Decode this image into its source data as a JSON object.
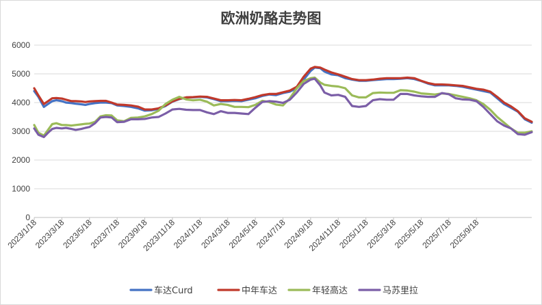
{
  "chart_data": {
    "type": "line",
    "title": "欧洲奶酪走势图",
    "xlabel": "",
    "ylabel": "",
    "ylim": [
      0,
      6000
    ],
    "yticks": [
      "0",
      "1000",
      "2000",
      "3000",
      "4000",
      "5000",
      "6000"
    ],
    "xticks": [
      "2023/1/18",
      "2023/3/18",
      "2023/5/18",
      "2023/7/18",
      "2023/9/18",
      "2023/11/18",
      "2024/1/18",
      "2024/3/18",
      "2024/5/18",
      "2024/7/18",
      "2024/9/18",
      "2024/11/18",
      "2025/1/18",
      "2025/3/18",
      "2025/5/18",
      "2025/7/18",
      "2025/9/18"
    ],
    "grid": "horizontal",
    "legend_position": "bottom",
    "x_unit": "months since 2023/1/18",
    "series": [
      {
        "name": "车达Curd",
        "color": "#4472C4",
        "points": [
          [
            0,
            4400
          ],
          [
            0.3,
            4200
          ],
          [
            0.7,
            3850
          ],
          [
            1.0,
            3950
          ],
          [
            1.3,
            4050
          ],
          [
            1.6,
            4080
          ],
          [
            2.0,
            4050
          ],
          [
            2.3,
            4000
          ],
          [
            2.7,
            3980
          ],
          [
            3.0,
            3960
          ],
          [
            3.4,
            3940
          ],
          [
            3.7,
            3920
          ],
          [
            4.0,
            3950
          ],
          [
            4.4,
            3980
          ],
          [
            4.8,
            4000
          ],
          [
            5.2,
            4000
          ],
          [
            5.6,
            3980
          ],
          [
            6.0,
            3900
          ],
          [
            6.5,
            3880
          ],
          [
            7.0,
            3850
          ],
          [
            7.5,
            3800
          ],
          [
            8.0,
            3720
          ],
          [
            8.5,
            3730
          ],
          [
            9.0,
            3780
          ],
          [
            9.5,
            3880
          ],
          [
            10.0,
            4030
          ],
          [
            10.5,
            4120
          ],
          [
            11.0,
            4180
          ],
          [
            11.5,
            4180
          ],
          [
            12.0,
            4200
          ],
          [
            12.5,
            4180
          ],
          [
            13.0,
            4120
          ],
          [
            13.5,
            4050
          ],
          [
            14.0,
            4050
          ],
          [
            14.5,
            4060
          ],
          [
            15.0,
            4050
          ],
          [
            15.5,
            4100
          ],
          [
            16.0,
            4150
          ],
          [
            16.5,
            4230
          ],
          [
            17.0,
            4280
          ],
          [
            17.5,
            4260
          ],
          [
            18.0,
            4330
          ],
          [
            18.5,
            4380
          ],
          [
            19.0,
            4500
          ],
          [
            19.5,
            4800
          ],
          [
            20.0,
            5100
          ],
          [
            20.3,
            5220
          ],
          [
            20.7,
            5200
          ],
          [
            21.0,
            5080
          ],
          [
            21.5,
            4980
          ],
          [
            22.0,
            4950
          ],
          [
            22.5,
            4850
          ],
          [
            23.0,
            4800
          ],
          [
            23.5,
            4760
          ],
          [
            24.0,
            4760
          ],
          [
            24.5,
            4780
          ],
          [
            25.0,
            4800
          ],
          [
            25.5,
            4820
          ],
          [
            26.0,
            4820
          ],
          [
            26.5,
            4830
          ],
          [
            27.0,
            4850
          ],
          [
            27.5,
            4820
          ],
          [
            28.0,
            4750
          ],
          [
            28.5,
            4660
          ],
          [
            29.0,
            4600
          ],
          [
            29.5,
            4600
          ],
          [
            30.0,
            4600
          ],
          [
            30.5,
            4580
          ],
          [
            31.0,
            4550
          ],
          [
            31.5,
            4500
          ],
          [
            32.0,
            4450
          ],
          [
            32.5,
            4400
          ],
          [
            33.0,
            4350
          ],
          [
            33.5,
            4150
          ],
          [
            34.0,
            3950
          ],
          [
            34.5,
            3820
          ],
          [
            35.0,
            3680
          ],
          [
            35.5,
            3420
          ],
          [
            36.0,
            3300
          ]
        ]
      },
      {
        "name": "中年车达",
        "color": "#C0392B",
        "points": [
          [
            0,
            4500
          ],
          [
            0.3,
            4250
          ],
          [
            0.7,
            3950
          ],
          [
            1.0,
            4050
          ],
          [
            1.3,
            4150
          ],
          [
            1.6,
            4160
          ],
          [
            2.0,
            4140
          ],
          [
            2.3,
            4100
          ],
          [
            2.7,
            4050
          ],
          [
            3.0,
            4050
          ],
          [
            3.4,
            4040
          ],
          [
            3.7,
            4020
          ],
          [
            4.0,
            4040
          ],
          [
            4.4,
            4050
          ],
          [
            4.8,
            4060
          ],
          [
            5.2,
            4060
          ],
          [
            5.6,
            4000
          ],
          [
            6.0,
            3930
          ],
          [
            6.5,
            3920
          ],
          [
            7.0,
            3900
          ],
          [
            7.5,
            3860
          ],
          [
            8.0,
            3760
          ],
          [
            8.5,
            3760
          ],
          [
            9.0,
            3800
          ],
          [
            9.5,
            3900
          ],
          [
            10.0,
            4040
          ],
          [
            10.5,
            4130
          ],
          [
            11.0,
            4180
          ],
          [
            11.5,
            4190
          ],
          [
            12.0,
            4210
          ],
          [
            12.5,
            4200
          ],
          [
            13.0,
            4140
          ],
          [
            13.5,
            4080
          ],
          [
            14.0,
            4080
          ],
          [
            14.5,
            4090
          ],
          [
            15.0,
            4080
          ],
          [
            15.5,
            4130
          ],
          [
            16.0,
            4190
          ],
          [
            16.5,
            4260
          ],
          [
            17.0,
            4300
          ],
          [
            17.5,
            4300
          ],
          [
            18.0,
            4360
          ],
          [
            18.5,
            4420
          ],
          [
            19.0,
            4550
          ],
          [
            19.5,
            4900
          ],
          [
            20.0,
            5180
          ],
          [
            20.3,
            5240
          ],
          [
            20.7,
            5220
          ],
          [
            21.0,
            5150
          ],
          [
            21.5,
            5050
          ],
          [
            22.0,
            4980
          ],
          [
            22.5,
            4900
          ],
          [
            23.0,
            4820
          ],
          [
            23.5,
            4780
          ],
          [
            24.0,
            4780
          ],
          [
            24.5,
            4800
          ],
          [
            25.0,
            4830
          ],
          [
            25.5,
            4850
          ],
          [
            26.0,
            4850
          ],
          [
            26.5,
            4850
          ],
          [
            27.0,
            4870
          ],
          [
            27.5,
            4850
          ],
          [
            28.0,
            4760
          ],
          [
            28.5,
            4680
          ],
          [
            29.0,
            4630
          ],
          [
            29.5,
            4630
          ],
          [
            30.0,
            4620
          ],
          [
            30.5,
            4600
          ],
          [
            31.0,
            4580
          ],
          [
            31.5,
            4530
          ],
          [
            32.0,
            4480
          ],
          [
            32.5,
            4450
          ],
          [
            33.0,
            4380
          ],
          [
            33.5,
            4200
          ],
          [
            34.0,
            4000
          ],
          [
            34.5,
            3870
          ],
          [
            35.0,
            3700
          ],
          [
            35.5,
            3450
          ],
          [
            36.0,
            3330
          ]
        ]
      },
      {
        "name": "年轻高达",
        "color": "#9BBB59",
        "points": [
          [
            0,
            3220
          ],
          [
            0.3,
            2950
          ],
          [
            0.7,
            2850
          ],
          [
            1.0,
            3050
          ],
          [
            1.3,
            3250
          ],
          [
            1.6,
            3280
          ],
          [
            2.0,
            3220
          ],
          [
            2.3,
            3220
          ],
          [
            2.7,
            3200
          ],
          [
            3.0,
            3220
          ],
          [
            3.4,
            3240
          ],
          [
            3.7,
            3260
          ],
          [
            4.0,
            3270
          ],
          [
            4.4,
            3330
          ],
          [
            4.8,
            3520
          ],
          [
            5.2,
            3560
          ],
          [
            5.6,
            3550
          ],
          [
            6.0,
            3380
          ],
          [
            6.5,
            3350
          ],
          [
            7.0,
            3470
          ],
          [
            7.5,
            3480
          ],
          [
            8.0,
            3520
          ],
          [
            8.5,
            3600
          ],
          [
            9.0,
            3720
          ],
          [
            9.5,
            3950
          ],
          [
            10.0,
            4100
          ],
          [
            10.5,
            4200
          ],
          [
            11.0,
            4110
          ],
          [
            11.5,
            4080
          ],
          [
            12.0,
            4100
          ],
          [
            12.5,
            4030
          ],
          [
            13.0,
            3900
          ],
          [
            13.5,
            3950
          ],
          [
            14.0,
            3920
          ],
          [
            14.5,
            3850
          ],
          [
            15.0,
            3850
          ],
          [
            15.5,
            3840
          ],
          [
            16.0,
            3920
          ],
          [
            16.5,
            4060
          ],
          [
            17.0,
            4020
          ],
          [
            17.5,
            3930
          ],
          [
            18.0,
            3900
          ],
          [
            18.5,
            4150
          ],
          [
            19.0,
            4500
          ],
          [
            19.5,
            4750
          ],
          [
            20.0,
            4850
          ],
          [
            20.3,
            4870
          ],
          [
            20.7,
            4700
          ],
          [
            21.0,
            4620
          ],
          [
            21.5,
            4580
          ],
          [
            22.0,
            4560
          ],
          [
            22.5,
            4500
          ],
          [
            23.0,
            4250
          ],
          [
            23.5,
            4180
          ],
          [
            24.0,
            4180
          ],
          [
            24.5,
            4330
          ],
          [
            25.0,
            4350
          ],
          [
            25.5,
            4340
          ],
          [
            26.0,
            4340
          ],
          [
            26.5,
            4430
          ],
          [
            27.0,
            4420
          ],
          [
            27.5,
            4380
          ],
          [
            28.0,
            4320
          ],
          [
            28.5,
            4300
          ],
          [
            29.0,
            4280
          ],
          [
            29.5,
            4320
          ],
          [
            30.0,
            4300
          ],
          [
            30.5,
            4250
          ],
          [
            31.0,
            4200
          ],
          [
            31.5,
            4150
          ],
          [
            32.0,
            4080
          ],
          [
            32.5,
            3950
          ],
          [
            33.0,
            3750
          ],
          [
            33.5,
            3500
          ],
          [
            34.0,
            3300
          ],
          [
            34.5,
            3100
          ],
          [
            35.0,
            2950
          ],
          [
            35.5,
            2950
          ],
          [
            36.0,
            3000
          ]
        ]
      },
      {
        "name": "马苏里拉",
        "color": "#7B5EA7",
        "points": [
          [
            0,
            3100
          ],
          [
            0.3,
            2880
          ],
          [
            0.7,
            2800
          ],
          [
            1.0,
            2950
          ],
          [
            1.3,
            3080
          ],
          [
            1.6,
            3120
          ],
          [
            2.0,
            3100
          ],
          [
            2.3,
            3120
          ],
          [
            2.7,
            3080
          ],
          [
            3.0,
            3050
          ],
          [
            3.4,
            3080
          ],
          [
            3.7,
            3120
          ],
          [
            4.0,
            3150
          ],
          [
            4.4,
            3280
          ],
          [
            4.8,
            3480
          ],
          [
            5.2,
            3500
          ],
          [
            5.6,
            3480
          ],
          [
            6.0,
            3320
          ],
          [
            6.5,
            3330
          ],
          [
            7.0,
            3420
          ],
          [
            7.5,
            3420
          ],
          [
            8.0,
            3430
          ],
          [
            8.5,
            3480
          ],
          [
            9.0,
            3500
          ],
          [
            9.5,
            3620
          ],
          [
            10.0,
            3760
          ],
          [
            10.5,
            3780
          ],
          [
            11.0,
            3750
          ],
          [
            11.5,
            3740
          ],
          [
            12.0,
            3740
          ],
          [
            12.5,
            3660
          ],
          [
            13.0,
            3600
          ],
          [
            13.5,
            3700
          ],
          [
            14.0,
            3640
          ],
          [
            14.5,
            3640
          ],
          [
            15.0,
            3620
          ],
          [
            15.5,
            3600
          ],
          [
            16.0,
            3820
          ],
          [
            16.5,
            4020
          ],
          [
            17.0,
            4050
          ],
          [
            17.5,
            4030
          ],
          [
            18.0,
            3990
          ],
          [
            18.5,
            4100
          ],
          [
            19.0,
            4350
          ],
          [
            19.5,
            4650
          ],
          [
            20.0,
            4800
          ],
          [
            20.3,
            4830
          ],
          [
            20.7,
            4600
          ],
          [
            21.0,
            4350
          ],
          [
            21.5,
            4250
          ],
          [
            22.0,
            4270
          ],
          [
            22.5,
            4200
          ],
          [
            23.0,
            3880
          ],
          [
            23.5,
            3850
          ],
          [
            24.0,
            3880
          ],
          [
            24.5,
            4080
          ],
          [
            25.0,
            4120
          ],
          [
            25.5,
            4100
          ],
          [
            26.0,
            4100
          ],
          [
            26.5,
            4300
          ],
          [
            27.0,
            4300
          ],
          [
            27.5,
            4250
          ],
          [
            28.0,
            4220
          ],
          [
            28.5,
            4200
          ],
          [
            29.0,
            4200
          ],
          [
            29.5,
            4330
          ],
          [
            30.0,
            4290
          ],
          [
            30.5,
            4150
          ],
          [
            31.0,
            4110
          ],
          [
            31.5,
            4100
          ],
          [
            32.0,
            4050
          ],
          [
            32.5,
            3850
          ],
          [
            33.0,
            3600
          ],
          [
            33.5,
            3350
          ],
          [
            34.0,
            3200
          ],
          [
            34.5,
            3100
          ],
          [
            35.0,
            2900
          ],
          [
            35.5,
            2880
          ],
          [
            36.0,
            2970
          ]
        ]
      }
    ]
  }
}
